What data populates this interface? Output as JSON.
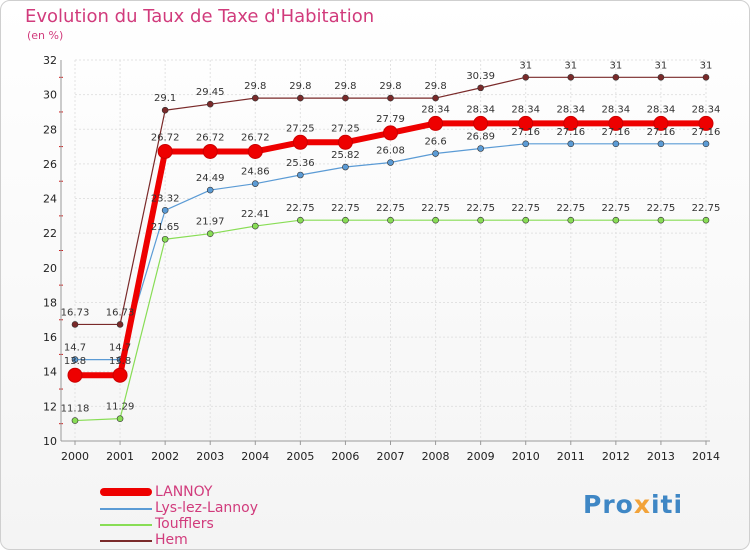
{
  "title": "Evolution du Taux de Taxe d'Habitation",
  "unit": "(en %)",
  "logo": "Proxiti",
  "chart_data": {
    "type": "line",
    "title": "Evolution du Taux de Taxe d'Habitation",
    "ylabel": "(en %)",
    "xlabel": "",
    "grid": true,
    "legend_position": "bottom-left",
    "ylim": [
      10,
      32
    ],
    "yticks": [
      10,
      12,
      14,
      16,
      18,
      20,
      22,
      24,
      26,
      28,
      30,
      32
    ],
    "x": [
      "2000",
      "2001",
      "2002",
      "2003",
      "2004",
      "2005",
      "2006",
      "2007",
      "2008",
      "2009",
      "2010",
      "2011",
      "2012",
      "2013",
      "2014"
    ],
    "series": [
      {
        "name": "LANNOY",
        "color": "#ee0000",
        "width": 6,
        "marker": 7,
        "dash": false,
        "values": [
          13.8,
          13.8,
          26.72,
          26.72,
          26.72,
          27.25,
          27.25,
          27.79,
          28.34,
          28.34,
          28.34,
          28.34,
          28.34,
          28.34,
          28.34
        ],
        "labels": [
          "13.8",
          "13.8",
          "26.72",
          "26.72",
          "26.72",
          "27.25",
          "27.25",
          "27.79",
          "28.34",
          "28.34",
          "28.34",
          "28.34",
          "28.34",
          "28.34",
          "28.34"
        ]
      },
      {
        "name": "Lys-lez-Lannoy",
        "color": "#5b9bd5",
        "width": 1.2,
        "marker": 3,
        "dash": false,
        "values": [
          14.7,
          14.7,
          23.32,
          24.49,
          24.86,
          25.36,
          25.82,
          26.08,
          26.6,
          26.89,
          27.16,
          27.16,
          27.16,
          27.16,
          27.16
        ],
        "labels": [
          "14.7",
          "14.7",
          "23.32",
          "24.49",
          "24.86",
          "25.36",
          "25.82",
          "26.08",
          "26.6",
          "26.89",
          "27.16",
          "27.16",
          "27.16",
          "27.16",
          "27.16"
        ]
      },
      {
        "name": "Toufflers",
        "color": "#88dd55",
        "width": 1.2,
        "marker": 3,
        "dash": false,
        "values": [
          11.18,
          11.29,
          21.65,
          21.97,
          22.41,
          22.75,
          22.75,
          22.75,
          22.75,
          22.75,
          22.75,
          22.75,
          22.75,
          22.75,
          22.75
        ],
        "labels": [
          "11.18",
          "11.29",
          "21.65",
          "21.97",
          "22.41",
          "22.75",
          "22.75",
          "22.75",
          "22.75",
          "22.75",
          "22.75",
          "22.75",
          "22.75",
          "22.75",
          "22.75"
        ]
      },
      {
        "name": "Hem",
        "color": "#7a2a2a",
        "width": 1.2,
        "marker": 3,
        "dash": false,
        "values": [
          16.73,
          16.73,
          29.1,
          29.45,
          29.8,
          29.8,
          29.8,
          29.8,
          29.8,
          30.39,
          31,
          31,
          31,
          31,
          31
        ],
        "labels": [
          "16.73",
          "16.73",
          "29.1",
          "29.45",
          "29.8",
          "29.8",
          "29.8",
          "29.8",
          "29.8",
          "30.39",
          "31",
          "31",
          "31",
          "31",
          "31"
        ]
      }
    ]
  }
}
